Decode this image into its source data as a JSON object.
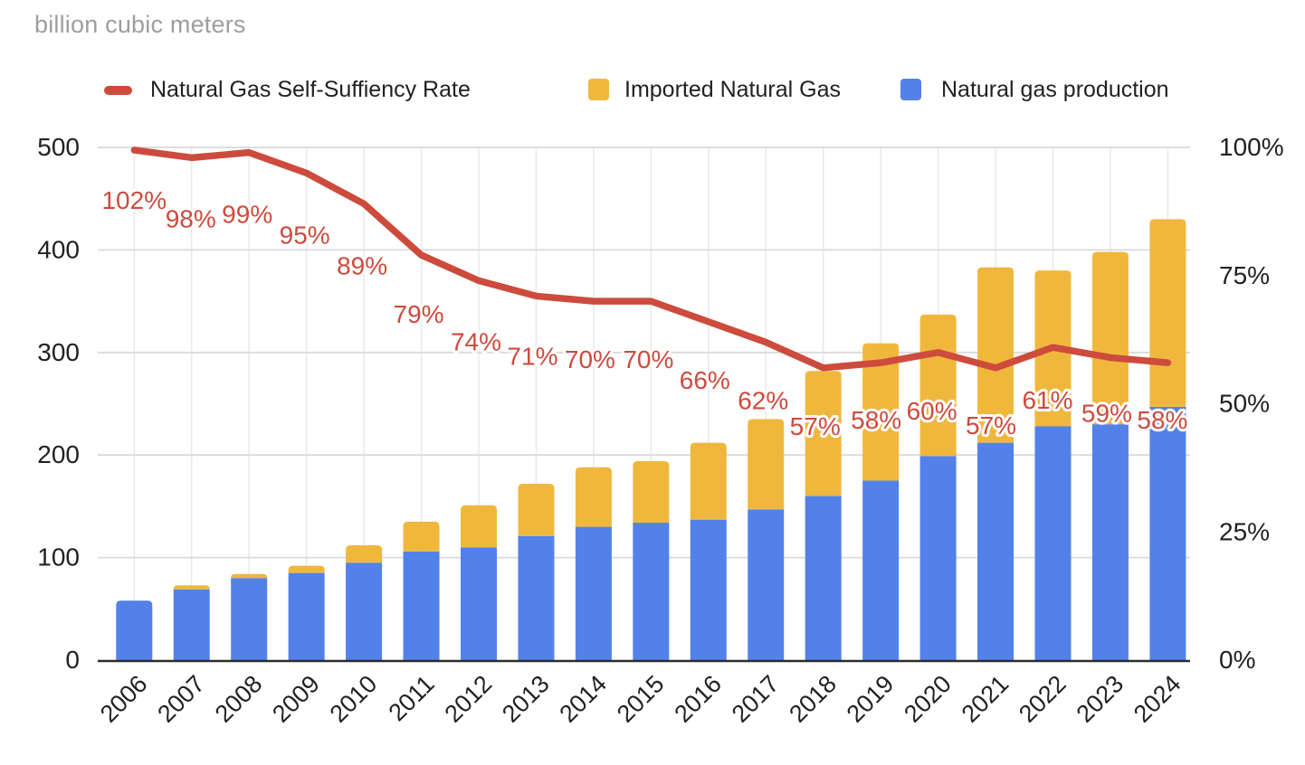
{
  "title": "billion cubic meters",
  "chart_data": {
    "type": "combo (stacked bar + line)",
    "title": "billion cubic meters",
    "categories": [
      "2006",
      "2007",
      "2008",
      "2009",
      "2010",
      "2011",
      "2012",
      "2013",
      "2014",
      "2015",
      "2016",
      "2017",
      "2018",
      "2019",
      "2020",
      "2021",
      "2022",
      "2023",
      "2024"
    ],
    "series": [
      {
        "name": "Natural Gas Self-Suffiency Rate",
        "type": "line",
        "axis": "right",
        "color": "#cd4b3d",
        "values": [
          102,
          98,
          99,
          95,
          89,
          79,
          74,
          71,
          70,
          70,
          66,
          62,
          57,
          58,
          60,
          57,
          61,
          59,
          58
        ],
        "labels": [
          "102%",
          "98%",
          "99%",
          "95%",
          "89%",
          "79%",
          "74%",
          "71%",
          "70%",
          "70%",
          "66%",
          "62%",
          "57%",
          "58%",
          "60%",
          "57%",
          "61%",
          "59%",
          "58%"
        ]
      },
      {
        "name": "Imported Natural Gas",
        "type": "bar",
        "stack": "top",
        "axis": "left",
        "color": "#efb83d",
        "values": [
          1,
          4,
          4,
          7,
          17,
          29,
          41,
          51,
          58,
          60,
          75,
          88,
          122,
          134,
          138,
          171,
          152,
          168,
          183
        ]
      },
      {
        "name": "Natural gas production",
        "type": "bar",
        "stack": "bottom",
        "axis": "left",
        "color": "#5282e9",
        "values": [
          58,
          69,
          80,
          85,
          95,
          106,
          110,
          121,
          130,
          134,
          137,
          147,
          160,
          175,
          199,
          212,
          228,
          230,
          247
        ]
      }
    ],
    "left_axis": {
      "min": 0,
      "max": 500,
      "tick_labels": [
        "0",
        "100",
        "200",
        "300",
        "400",
        "500"
      ]
    },
    "right_axis": {
      "min": 0,
      "max": 100,
      "tick_labels": [
        "0%",
        "25%",
        "50%",
        "75%",
        "100%"
      ]
    },
    "x_axis": {
      "label_rotation_deg": -45
    },
    "grid": {
      "horizontal": true,
      "vertical": true
    },
    "legend_position": "top"
  },
  "colors": {
    "line": "#cd4b3d",
    "imports_bar": "#efb83d",
    "production_bar": "#5282e9",
    "h_gridline": "#dadada",
    "v_gridline": "#eaeaea",
    "baseline": "#2b2b2b",
    "axis_text": "#212121",
    "title_text": "#9e9e9e",
    "rate_label_halo": "#ffffff"
  }
}
